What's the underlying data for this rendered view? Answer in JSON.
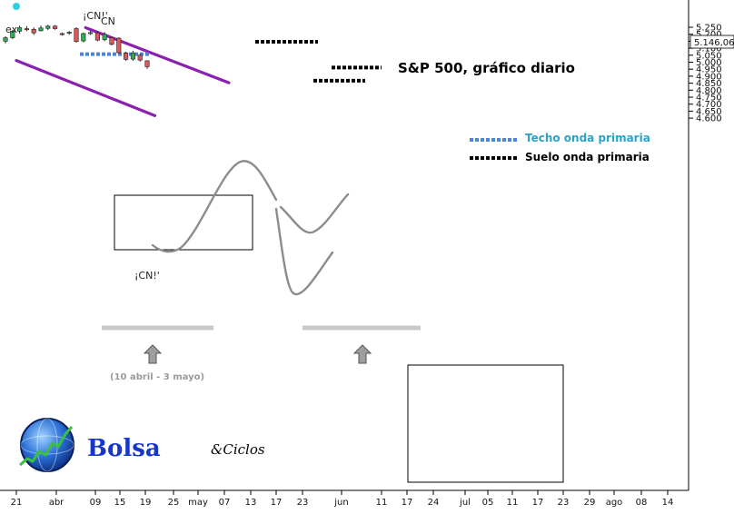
{
  "chart_data": {
    "type": "candlestick",
    "title": "S&P 500, gráfico diario",
    "ylim": [
      4575,
      5285
    ],
    "y_ticks": [
      4600,
      4650,
      4700,
      4750,
      4800,
      4850,
      4900,
      4950,
      5000,
      5050,
      5100,
      5150,
      5200,
      5250
    ],
    "y_tick_labels": [
      "4.600",
      "4.650",
      "4.700",
      "4.750",
      "4.800",
      "4.850",
      "4.900",
      "4.950",
      "5.000",
      "5.050",
      "5.100",
      "5.150",
      "5.200",
      "5.250"
    ],
    "last_price_label": "5.146,06",
    "last_price": 5146.06,
    "x_tick_labels": [
      "21",
      "abr",
      "09",
      "15",
      "19",
      "25",
      "may",
      "07",
      "13",
      "17",
      "23",
      "jun",
      "11",
      "17",
      "24",
      "jul",
      "05",
      "11",
      "17",
      "23",
      "29",
      "ago",
      "08",
      "14"
    ],
    "candles": [
      {
        "o": 5150,
        "h": 5185,
        "l": 5135,
        "c": 5175
      },
      {
        "o": 5175,
        "h": 5230,
        "l": 5165,
        "c": 5222
      },
      {
        "o": 5222,
        "h": 5262,
        "l": 5205,
        "c": 5247
      },
      {
        "o": 5240,
        "h": 5258,
        "l": 5222,
        "c": 5232
      },
      {
        "o": 5235,
        "h": 5248,
        "l": 5195,
        "c": 5210
      },
      {
        "o": 5225,
        "h": 5262,
        "l": 5220,
        "c": 5245
      },
      {
        "o": 5242,
        "h": 5268,
        "l": 5230,
        "c": 5258
      },
      {
        "o": 5258,
        "h": 5266,
        "l": 5232,
        "c": 5240
      },
      {
        "o": 5205,
        "h": 5212,
        "l": 5190,
        "c": 5200
      },
      {
        "o": 5208,
        "h": 5222,
        "l": 5195,
        "c": 5215
      },
      {
        "o": 5240,
        "h": 5250,
        "l": 5140,
        "c": 5148
      },
      {
        "o": 5152,
        "h": 5212,
        "l": 5142,
        "c": 5205
      },
      {
        "o": 5205,
        "h": 5225,
        "l": 5195,
        "c": 5212
      },
      {
        "o": 5210,
        "h": 5220,
        "l": 5150,
        "c": 5158
      },
      {
        "o": 5162,
        "h": 5215,
        "l": 5150,
        "c": 5199
      },
      {
        "o": 5175,
        "h": 5182,
        "l": 5120,
        "c": 5128
      },
      {
        "o": 5172,
        "h": 5178,
        "l": 5060,
        "c": 5068
      },
      {
        "o": 5065,
        "h": 5075,
        "l": 5010,
        "c": 5020
      },
      {
        "o": 5022,
        "h": 5082,
        "l": 5010,
        "c": 5065
      },
      {
        "o": 5050,
        "h": 5060,
        "l": 5005,
        "c": 5015
      },
      {
        "o": 5010,
        "h": 5015,
        "l": 4953,
        "c": 4968
      }
    ],
    "trend_channel": [
      {
        "start": {
          "x": "2024-03-21",
          "y": 5012
        },
        "end": {
          "x": "2024-06-17",
          "y": 4618
        }
      },
      {
        "start": {
          "x": "2024-05-04",
          "y": 5247
        },
        "end": {
          "x": "2024-08-03",
          "y": 4853
        }
      }
    ],
    "levels": [
      {
        "name": "Techo onda primaria",
        "value": 5058
      },
      {
        "name": "Suelo onda primaria",
        "value": 5146
      },
      {
        "name": "Suelo onda primaria",
        "value": 4962
      },
      {
        "name": "Suelo onda primaria",
        "value": 4868
      }
    ],
    "annotations": [
      {
        "text": "¡CN!'",
        "value": 5265
      },
      {
        "text": "CN",
        "value": 5250
      },
      {
        "text": "ex",
        "value": 5236
      },
      {
        "text": "¡CN!'",
        "value": 4895
      }
    ],
    "range_label": "(10 abril - 3 mayo)"
  },
  "legend": {
    "techo": "Techo onda primaria",
    "suelo": "Suelo onda primaria"
  },
  "logo": {
    "name": "Bolsa",
    "suffix": "&Ciclos"
  },
  "colors": {
    "channel": "#8a1fb0",
    "bull": "#2fae57",
    "bear": "#e0575b",
    "techo": "#4a86d6",
    "suelo": "#000000",
    "projection": "#8c8c8c",
    "range_bar": "#c8c8c8"
  }
}
